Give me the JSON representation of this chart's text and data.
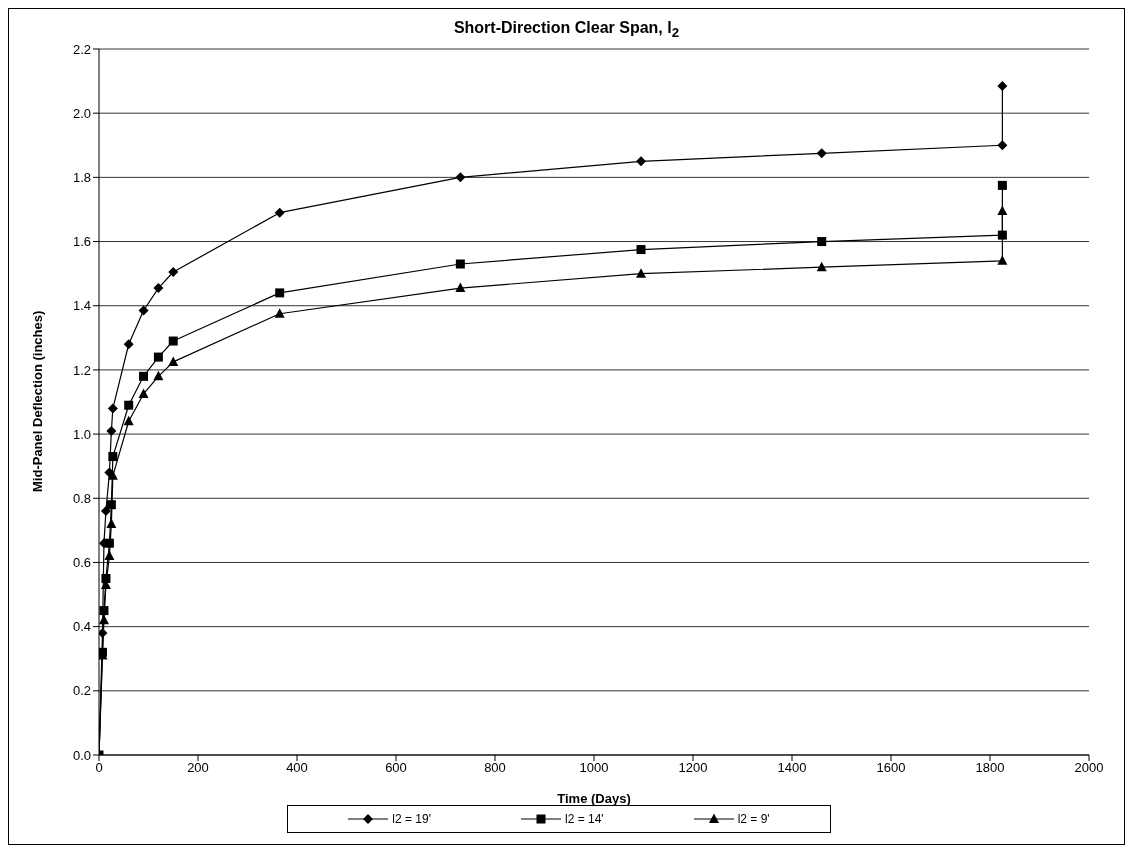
{
  "chart_data": {
    "type": "line",
    "title": "Short-Direction Clear Span, l$_{2}$",
    "xlabel": "Time (Days)",
    "ylabel": "Mid-Panel Deflection (inches)",
    "x": [
      0,
      7,
      10,
      14,
      21,
      25,
      28,
      60,
      90,
      120,
      150,
      365,
      730,
      1095,
      1460,
      1825,
      1825
    ],
    "series": [
      {
        "name": "l2 = 19'",
        "color": "#000000",
        "marker": "diamond",
        "values": [
          0,
          0.38,
          0.66,
          0.76,
          0.88,
          1.01,
          1.08,
          1.28,
          1.385,
          1.455,
          1.505,
          1.69,
          1.8,
          1.85,
          1.875,
          1.9,
          2.085
        ]
      },
      {
        "name": "l2 = 14'",
        "color": "#000000",
        "marker": "square",
        "values": [
          0,
          0.32,
          0.45,
          0.55,
          0.66,
          0.78,
          0.93,
          1.09,
          1.18,
          1.24,
          1.29,
          1.44,
          1.53,
          1.575,
          1.6,
          1.62,
          1.775
        ]
      },
      {
        "name": "l2 = 9'",
        "color": "#000000",
        "marker": "triangle",
        "values": [
          0,
          0.31,
          0.42,
          0.53,
          0.62,
          0.72,
          0.87,
          1.04,
          1.125,
          1.18,
          1.225,
          1.375,
          1.455,
          1.5,
          1.52,
          1.54,
          1.695
        ]
      }
    ],
    "xlim": [
      0,
      2000
    ],
    "xticks": [
      0,
      200,
      400,
      600,
      800,
      1000,
      1200,
      1400,
      1600,
      1800,
      2000
    ],
    "ylim": [
      0,
      2.2
    ],
    "yticks": [
      {
        "value": 0,
        "label": "0.0"
      },
      0.2,
      0.4,
      0.6,
      0.8,
      {
        "value": 1,
        "label": "1.0"
      },
      1.2,
      1.4,
      1.6,
      1.8,
      {
        "value": 2,
        "label": "2.0"
      },
      2.2
    ],
    "grid": "y",
    "legend": "bottom",
    "line_style": "solid"
  }
}
